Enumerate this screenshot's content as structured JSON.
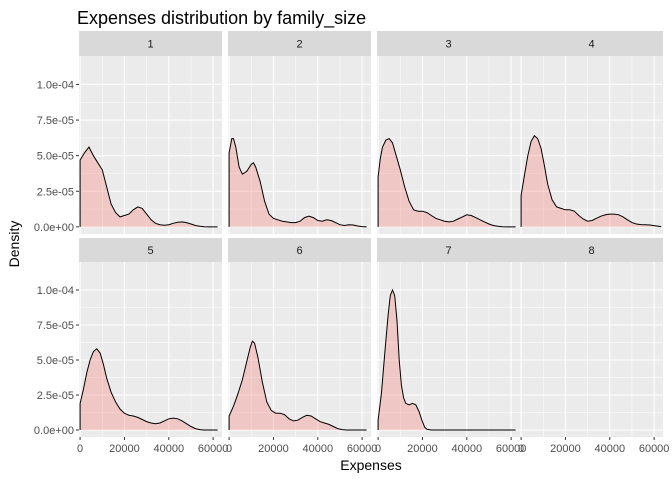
{
  "chart_data": {
    "type": "area",
    "title": "Expenses distribution by family_size",
    "xlabel": "Expenses",
    "ylabel": "Density",
    "xlim": [
      -500,
      64000
    ],
    "ylim": [
      -5e-06,
      0.00012
    ],
    "x_ticks": [
      0,
      20000,
      40000,
      60000
    ],
    "x_tick_labels": [
      "0",
      "20000",
      "40000",
      "60000"
    ],
    "y_ticks": [
      0,
      2.5e-05,
      5e-05,
      7.5e-05,
      0.0001
    ],
    "y_tick_labels": [
      "0.0e+00",
      "2.5e-05",
      "5.0e-05",
      "7.5e-05",
      "1.0e-04"
    ],
    "grid": true,
    "fill_color": "#F8766D",
    "fill_opacity": 0.3,
    "line_color": "#000000",
    "panel_background": "#EBEBEB",
    "strip_background": "#D9D9D9",
    "grid_color": "#FFFFFF",
    "layout": "facet_wrap 2 rows x 4 columns",
    "panels": [
      {
        "label": "1",
        "points": [
          [
            0,
            4.7e-05
          ],
          [
            2000,
            5.2e-05
          ],
          [
            4000,
            5.6e-05
          ],
          [
            6000,
            5e-05
          ],
          [
            8000,
            4.5e-05
          ],
          [
            10000,
            4e-05
          ],
          [
            12000,
            2.8e-05
          ],
          [
            14000,
            1.6e-05
          ],
          [
            16000,
            1e-05
          ],
          [
            18000,
            7e-06
          ],
          [
            20000,
            8e-06
          ],
          [
            22000,
            9e-06
          ],
          [
            24000,
            1.2e-05
          ],
          [
            26000,
            1.4e-05
          ],
          [
            28000,
            1.3e-05
          ],
          [
            30000,
            9e-06
          ],
          [
            32000,
            5e-06
          ],
          [
            34000,
            2.5e-06
          ],
          [
            36000,
            1.5e-06
          ],
          [
            38000,
            1.2e-06
          ],
          [
            40000,
            1.5e-06
          ],
          [
            42000,
            2.5e-06
          ],
          [
            44000,
            3.2e-06
          ],
          [
            46000,
            3.5e-06
          ],
          [
            48000,
            3e-06
          ],
          [
            50000,
            2e-06
          ],
          [
            52000,
            1e-06
          ],
          [
            54000,
            4e-07
          ],
          [
            56000,
            1e-07
          ],
          [
            58000,
            0
          ],
          [
            60000,
            0
          ],
          [
            62000,
            0
          ]
        ]
      },
      {
        "label": "2",
        "points": [
          [
            0,
            5.2e-05
          ],
          [
            1200,
            6.2e-05
          ],
          [
            2000,
            6.2e-05
          ],
          [
            3000,
            5.6e-05
          ],
          [
            4500,
            4.2e-05
          ],
          [
            6000,
            3.7e-05
          ],
          [
            8000,
            3.9e-05
          ],
          [
            10000,
            4.4e-05
          ],
          [
            11000,
            4.5e-05
          ],
          [
            12000,
            4.2e-05
          ],
          [
            14000,
            3.2e-05
          ],
          [
            16000,
            1.8e-05
          ],
          [
            18000,
            9e-06
          ],
          [
            20000,
            6e-06
          ],
          [
            22000,
            5e-06
          ],
          [
            24000,
            4e-06
          ],
          [
            26000,
            3.5e-06
          ],
          [
            28000,
            3e-06
          ],
          [
            30000,
            3e-06
          ],
          [
            32000,
            4e-06
          ],
          [
            34000,
            6.5e-06
          ],
          [
            36000,
            7.5e-06
          ],
          [
            38000,
            6.5e-06
          ],
          [
            40000,
            4.5e-06
          ],
          [
            42000,
            4e-06
          ],
          [
            44000,
            5e-06
          ],
          [
            46000,
            4.5e-06
          ],
          [
            48000,
            3e-06
          ],
          [
            50000,
            1.5e-06
          ],
          [
            52000,
            1e-06
          ],
          [
            54000,
            1.5e-06
          ],
          [
            56000,
            1.3e-06
          ],
          [
            58000,
            6e-07
          ],
          [
            60000,
            2e-07
          ],
          [
            62000,
            0
          ]
        ]
      },
      {
        "label": "3",
        "points": [
          [
            0,
            3.5e-05
          ],
          [
            1000,
            4.8e-05
          ],
          [
            2000,
            5.6e-05
          ],
          [
            3500,
            6.1e-05
          ],
          [
            5000,
            6.2e-05
          ],
          [
            6500,
            5.9e-05
          ],
          [
            8000,
            5.1e-05
          ],
          [
            10000,
            4e-05
          ],
          [
            12000,
            2.8e-05
          ],
          [
            14000,
            1.8e-05
          ],
          [
            16000,
            1.2e-05
          ],
          [
            18000,
            1.1e-05
          ],
          [
            20000,
            1.1e-05
          ],
          [
            22000,
            1e-05
          ],
          [
            24000,
            8e-06
          ],
          [
            26000,
            6e-06
          ],
          [
            28000,
            5e-06
          ],
          [
            30000,
            4e-06
          ],
          [
            32000,
            3.5e-06
          ],
          [
            34000,
            4e-06
          ],
          [
            36000,
            5.5e-06
          ],
          [
            38000,
            7e-06
          ],
          [
            40000,
            8.5e-06
          ],
          [
            42000,
            8e-06
          ],
          [
            44000,
            6.5e-06
          ],
          [
            46000,
            5e-06
          ],
          [
            48000,
            3.5e-06
          ],
          [
            50000,
            2e-06
          ],
          [
            52000,
            1e-06
          ],
          [
            54000,
            4e-07
          ],
          [
            56000,
            1e-07
          ],
          [
            58000,
            0
          ],
          [
            60000,
            0
          ],
          [
            62000,
            0
          ]
        ]
      },
      {
        "label": "4",
        "points": [
          [
            0,
            2.2e-05
          ],
          [
            1500,
            3.6e-05
          ],
          [
            3000,
            5e-05
          ],
          [
            4500,
            6e-05
          ],
          [
            6000,
            6.4e-05
          ],
          [
            7500,
            6.2e-05
          ],
          [
            9000,
            5.5e-05
          ],
          [
            10500,
            4.3e-05
          ],
          [
            12000,
            3e-05
          ],
          [
            14000,
            1.9e-05
          ],
          [
            16000,
            1.4e-05
          ],
          [
            18000,
            1.3e-05
          ],
          [
            20000,
            1.2e-05
          ],
          [
            22000,
            1.2e-05
          ],
          [
            24000,
            1.1e-05
          ],
          [
            26000,
            8e-06
          ],
          [
            28000,
            5.5e-06
          ],
          [
            30000,
            4e-06
          ],
          [
            32000,
            4.5e-06
          ],
          [
            34000,
            6e-06
          ],
          [
            36000,
            7.5e-06
          ],
          [
            38000,
            8.5e-06
          ],
          [
            40000,
            9e-06
          ],
          [
            42000,
            9e-06
          ],
          [
            44000,
            8.5e-06
          ],
          [
            46000,
            7e-06
          ],
          [
            48000,
            5e-06
          ],
          [
            50000,
            3e-06
          ],
          [
            52000,
            2e-06
          ],
          [
            54000,
            1.6e-06
          ],
          [
            56000,
            1.5e-06
          ],
          [
            58000,
            1.3e-06
          ],
          [
            60000,
            9e-07
          ],
          [
            62000,
            4e-07
          ],
          [
            63000,
            2e-07
          ]
        ]
      },
      {
        "label": "5",
        "points": [
          [
            0,
            1.9e-05
          ],
          [
            1500,
            2.9e-05
          ],
          [
            3000,
            4.1e-05
          ],
          [
            4500,
            5e-05
          ],
          [
            6000,
            5.6e-05
          ],
          [
            7500,
            5.8e-05
          ],
          [
            9000,
            5.5e-05
          ],
          [
            10500,
            4.7e-05
          ],
          [
            12000,
            3.7e-05
          ],
          [
            14000,
            2.7e-05
          ],
          [
            16000,
            2e-05
          ],
          [
            18000,
            1.5e-05
          ],
          [
            20000,
            1.2e-05
          ],
          [
            22000,
            1.05e-05
          ],
          [
            24000,
            1e-05
          ],
          [
            26000,
            9e-06
          ],
          [
            28000,
            7.5e-06
          ],
          [
            30000,
            6e-06
          ],
          [
            32000,
            5e-06
          ],
          [
            34000,
            4.5e-06
          ],
          [
            36000,
            5e-06
          ],
          [
            38000,
            6.5e-06
          ],
          [
            40000,
            8e-06
          ],
          [
            42000,
            8.5e-06
          ],
          [
            44000,
            8e-06
          ],
          [
            46000,
            6.5e-06
          ],
          [
            48000,
            4.5e-06
          ],
          [
            50000,
            2.5e-06
          ],
          [
            52000,
            1e-06
          ],
          [
            54000,
            3e-07
          ],
          [
            56000,
            0
          ],
          [
            58000,
            0
          ],
          [
            60000,
            0
          ],
          [
            62000,
            0
          ]
        ]
      },
      {
        "label": "6",
        "points": [
          [
            0,
            1e-05
          ],
          [
            2000,
            1.7e-05
          ],
          [
            4000,
            2.6e-05
          ],
          [
            6000,
            3.6e-05
          ],
          [
            8000,
            4.9e-05
          ],
          [
            9500,
            5.9e-05
          ],
          [
            10500,
            6.35e-05
          ],
          [
            11500,
            6.2e-05
          ],
          [
            13000,
            5.2e-05
          ],
          [
            15000,
            3.4e-05
          ],
          [
            17000,
            2e-05
          ],
          [
            19000,
            1.4e-05
          ],
          [
            21000,
            1.2e-05
          ],
          [
            23000,
            1.2e-05
          ],
          [
            25000,
            1.1e-05
          ],
          [
            27000,
            8e-06
          ],
          [
            29000,
            6.5e-06
          ],
          [
            31000,
            7e-06
          ],
          [
            33000,
            9e-06
          ],
          [
            35000,
            1.05e-05
          ],
          [
            37000,
            1e-05
          ],
          [
            39000,
            8e-06
          ],
          [
            41000,
            6e-06
          ],
          [
            43000,
            5e-06
          ],
          [
            45000,
            4e-06
          ],
          [
            47000,
            2.5e-06
          ],
          [
            49000,
            1e-06
          ],
          [
            51000,
            3e-07
          ],
          [
            53000,
            0
          ],
          [
            56000,
            0
          ],
          [
            60000,
            0
          ],
          [
            62000,
            0
          ]
        ]
      },
      {
        "label": "7",
        "points": [
          [
            0,
            7e-06
          ],
          [
            1500,
            2.6e-05
          ],
          [
            3000,
            5.5e-05
          ],
          [
            4500,
            8.2e-05
          ],
          [
            5500,
            9.6e-05
          ],
          [
            6500,
            0.0001
          ],
          [
            7500,
            9.6e-05
          ],
          [
            8500,
            7.8e-05
          ],
          [
            9500,
            5e-05
          ],
          [
            10500,
            3.2e-05
          ],
          [
            11500,
            2.3e-05
          ],
          [
            12500,
            1.9e-05
          ],
          [
            14000,
            1.8e-05
          ],
          [
            15500,
            1.9e-05
          ],
          [
            17000,
            1.8e-05
          ],
          [
            18500,
            1.3e-05
          ],
          [
            20000,
            6e-06
          ],
          [
            21000,
            2e-06
          ],
          [
            22000,
            5e-07
          ],
          [
            24000,
            0
          ],
          [
            30000,
            0
          ],
          [
            40000,
            0
          ],
          [
            50000,
            0
          ],
          [
            60000,
            0
          ],
          [
            62000,
            0
          ]
        ]
      },
      {
        "label": "8",
        "points": []
      }
    ]
  }
}
